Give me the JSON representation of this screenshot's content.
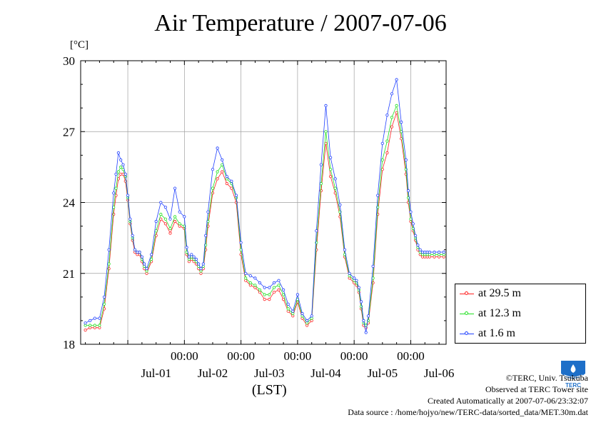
{
  "chart_data": {
    "type": "line",
    "title": "Air Temperature / 2007-07-06",
    "ylabel": "[°C]",
    "xlabel": "(LST)",
    "ylim": [
      18,
      30
    ],
    "yticks": [
      "18",
      "21",
      "24",
      "27",
      "30"
    ],
    "xtime_labels": [
      "00:00",
      "00:00",
      "00:00",
      "00:00",
      "00:00"
    ],
    "xdate_labels": [
      "Jul-01",
      "Jul-02",
      "Jul-03",
      "Jul-04",
      "Jul-05",
      "Jul-06"
    ],
    "x_unit": "hours since 2007-07-01 00:00 LST",
    "grid": true,
    "legend_position": "lower-right, outside plot",
    "series": [
      {
        "name": "at 29.5 m",
        "color": "#ff2020",
        "x": [
          -18,
          -16,
          -14,
          -12,
          -10,
          -8,
          -6,
          -5,
          -4,
          -3,
          -2,
          -1,
          0,
          1,
          2,
          3,
          4,
          5,
          6,
          7,
          8,
          10,
          12,
          14,
          16,
          18,
          20,
          22,
          24,
          25,
          26,
          27,
          28,
          29,
          30,
          31,
          32,
          33,
          34,
          36,
          38,
          40,
          42,
          44,
          46,
          48,
          50,
          52,
          54,
          56,
          58,
          60,
          62,
          64,
          66,
          68,
          70,
          72,
          74,
          76,
          78,
          80,
          82,
          84,
          86,
          88,
          90,
          92,
          94,
          96,
          97,
          98,
          99,
          100,
          101,
          102,
          104,
          106,
          108,
          110,
          112,
          114,
          116,
          118,
          119,
          120,
          121,
          122,
          123,
          124,
          125,
          126,
          127,
          128,
          130,
          132,
          134
        ],
        "y": [
          18.6,
          18.7,
          18.7,
          18.7,
          19.5,
          21.2,
          23.5,
          24.3,
          25.0,
          25.2,
          25.2,
          24.9,
          24.1,
          23.1,
          22.4,
          21.9,
          21.8,
          21.8,
          21.5,
          21.2,
          21.0,
          21.5,
          22.6,
          23.3,
          23.1,
          22.7,
          23.2,
          23.0,
          22.9,
          21.8,
          21.5,
          21.6,
          21.5,
          21.4,
          21.2,
          21.0,
          21.2,
          22.0,
          23.0,
          24.4,
          25.0,
          25.3,
          24.8,
          24.6,
          24.0,
          21.8,
          20.7,
          20.5,
          20.4,
          20.2,
          19.9,
          19.9,
          20.2,
          20.3,
          19.9,
          19.4,
          19.2,
          19.8,
          19.1,
          18.8,
          19.0,
          22.0,
          24.5,
          26.5,
          25.1,
          24.4,
          23.4,
          21.7,
          20.8,
          20.6,
          20.5,
          20.2,
          19.5,
          18.8,
          18.7,
          18.9,
          20.6,
          23.5,
          25.4,
          26.1,
          27.2,
          27.8,
          26.7,
          25.2,
          24.0,
          23.2,
          22.8,
          22.4,
          22.0,
          21.8,
          21.7,
          21.7,
          21.7,
          21.7,
          21.7,
          21.7,
          21.7
        ]
      },
      {
        "name": "at 12.3 m",
        "color": "#20e020",
        "x": [
          -18,
          -16,
          -14,
          -12,
          -10,
          -8,
          -6,
          -5,
          -4,
          -3,
          -2,
          -1,
          0,
          1,
          2,
          3,
          4,
          5,
          6,
          7,
          8,
          10,
          12,
          14,
          16,
          18,
          20,
          22,
          24,
          25,
          26,
          27,
          28,
          29,
          30,
          31,
          32,
          33,
          34,
          36,
          38,
          40,
          42,
          44,
          46,
          48,
          50,
          52,
          54,
          56,
          58,
          60,
          62,
          64,
          66,
          68,
          70,
          72,
          74,
          76,
          78,
          80,
          82,
          84,
          86,
          88,
          90,
          92,
          94,
          96,
          97,
          98,
          99,
          100,
          101,
          102,
          104,
          106,
          108,
          110,
          112,
          114,
          116,
          118,
          119,
          120,
          121,
          122,
          123,
          124,
          125,
          126,
          127,
          128,
          130,
          132,
          134
        ],
        "y": [
          18.8,
          18.8,
          18.8,
          18.8,
          19.7,
          21.4,
          23.8,
          24.6,
          25.3,
          25.5,
          25.4,
          25.1,
          24.2,
          23.2,
          22.5,
          22.0,
          21.9,
          21.9,
          21.6,
          21.3,
          21.1,
          21.6,
          22.8,
          23.5,
          23.3,
          22.9,
          23.4,
          23.1,
          23.0,
          21.9,
          21.6,
          21.7,
          21.6,
          21.5,
          21.3,
          21.1,
          21.3,
          22.2,
          23.2,
          24.6,
          25.3,
          25.6,
          25.0,
          24.8,
          24.2,
          22.0,
          20.8,
          20.6,
          20.5,
          20.3,
          20.1,
          20.1,
          20.4,
          20.5,
          20.1,
          19.5,
          19.3,
          19.9,
          19.2,
          18.9,
          19.1,
          22.3,
          24.8,
          27.0,
          25.4,
          24.6,
          23.6,
          21.8,
          20.9,
          20.7,
          20.6,
          20.3,
          19.6,
          18.9,
          18.8,
          19.0,
          20.8,
          23.8,
          25.8,
          26.6,
          27.6,
          28.1,
          27.0,
          25.4,
          24.2,
          23.3,
          22.9,
          22.5,
          22.1,
          21.9,
          21.8,
          21.8,
          21.8,
          21.8,
          21.8,
          21.8,
          21.8
        ]
      },
      {
        "name": "at 1.6 m",
        "color": "#2040ff",
        "x": [
          -18,
          -16,
          -14,
          -12,
          -10,
          -8,
          -6,
          -5,
          -4,
          -3,
          -2,
          -1,
          0,
          1,
          2,
          3,
          4,
          5,
          6,
          7,
          8,
          10,
          12,
          14,
          16,
          18,
          20,
          22,
          24,
          25,
          26,
          27,
          28,
          29,
          30,
          31,
          32,
          33,
          34,
          36,
          38,
          40,
          42,
          44,
          46,
          48,
          50,
          52,
          54,
          56,
          58,
          60,
          62,
          64,
          66,
          68,
          70,
          72,
          74,
          76,
          78,
          80,
          82,
          84,
          86,
          88,
          90,
          92,
          94,
          96,
          97,
          98,
          99,
          100,
          101,
          102,
          104,
          106,
          108,
          110,
          112,
          114,
          116,
          118,
          119,
          120,
          121,
          122,
          123,
          124,
          125,
          126,
          127,
          128,
          130,
          132,
          134
        ],
        "y": [
          18.9,
          19.0,
          19.1,
          19.1,
          20.0,
          22.0,
          24.4,
          25.2,
          26.1,
          25.8,
          25.6,
          25.2,
          24.3,
          23.3,
          22.6,
          22.0,
          21.9,
          21.9,
          21.7,
          21.4,
          21.2,
          21.8,
          23.2,
          24.0,
          23.8,
          23.3,
          24.6,
          23.6,
          23.4,
          22.1,
          21.7,
          21.8,
          21.7,
          21.6,
          21.4,
          21.2,
          21.4,
          22.6,
          23.6,
          25.4,
          26.3,
          25.8,
          25.1,
          24.9,
          24.3,
          22.3,
          21.0,
          20.9,
          20.8,
          20.6,
          20.4,
          20.4,
          20.6,
          20.7,
          20.3,
          19.7,
          19.4,
          20.1,
          19.3,
          19.0,
          19.2,
          22.8,
          25.6,
          28.1,
          25.9,
          25.0,
          23.9,
          22.0,
          21.0,
          20.8,
          20.7,
          20.4,
          19.8,
          19.0,
          18.5,
          19.2,
          21.3,
          24.3,
          26.5,
          27.7,
          28.6,
          29.2,
          27.4,
          25.8,
          24.5,
          23.6,
          23.1,
          22.6,
          22.2,
          22.0,
          21.9,
          21.9,
          21.9,
          21.9,
          21.9,
          21.9,
          21.9
        ]
      }
    ]
  },
  "legend": {
    "items": [
      "at 29.5 m",
      "at 12.3 m",
      "at 1.6 m"
    ]
  },
  "credits": {
    "copyright": "©TERC, Univ. Tsukuba",
    "observed": "Observed at TERC Tower site",
    "created": "Created Automatically at 2007-07-06/23:32:07",
    "source": "Data source : /home/hojyo/new/TERC-data/sorted_data/MET.30m.dat"
  },
  "logo": {
    "text": "TERC",
    "color": "#1e6fc8"
  }
}
